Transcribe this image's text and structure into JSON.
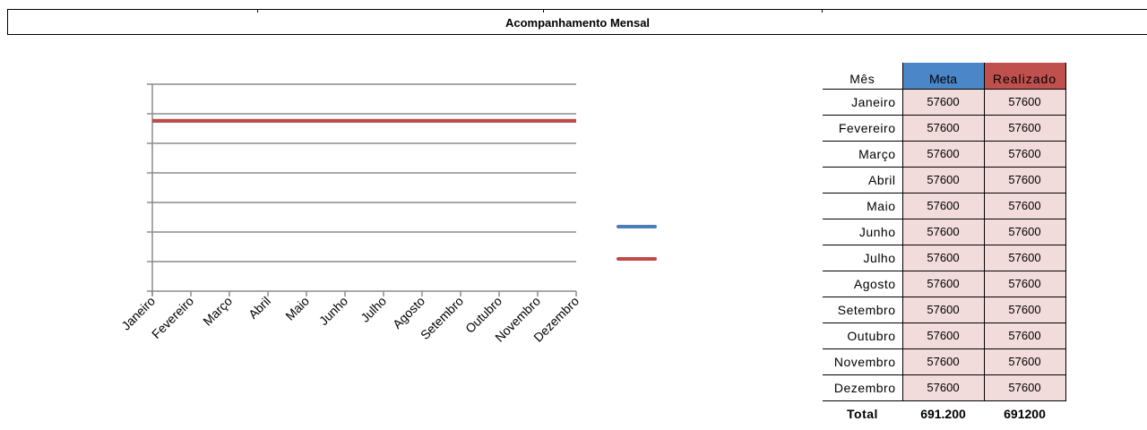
{
  "page": {
    "title": "Acompanhamento Mensal"
  },
  "chart_data": {
    "type": "line",
    "categories": [
      "Janeiro",
      "Fevereiro",
      "Março",
      "Abril",
      "Maio",
      "Junho",
      "Julho",
      "Agosto",
      "Setembro",
      "Outubro",
      "Novembro",
      "Dezembro"
    ],
    "series": [
      {
        "name": "Meta",
        "values": [
          57600,
          57600,
          57600,
          57600,
          57600,
          57600,
          57600,
          57600,
          57600,
          57600,
          57600,
          57600
        ],
        "color": "#4a7ebb"
      },
      {
        "name": "Realizado",
        "values": [
          57600,
          57600,
          57600,
          57600,
          57600,
          57600,
          57600,
          57600,
          57600,
          57600,
          57600,
          57600
        ],
        "color": "#be4b48"
      }
    ],
    "ylim": [
      0,
      70000
    ],
    "yticks": [
      0,
      10000,
      20000,
      30000,
      40000,
      50000,
      60000,
      70000
    ],
    "grid": true,
    "legend": "right"
  },
  "table": {
    "headers": {
      "month": "Mês",
      "meta": "Meta",
      "real": "Realizado"
    },
    "colors": {
      "meta_header": "#4a86c8",
      "real_header": "#c0504d",
      "cell_fill": "#f2dcdb"
    },
    "rows": [
      {
        "month": "Janeiro",
        "meta": "57600",
        "real": "57600"
      },
      {
        "month": "Fevereiro",
        "meta": "57600",
        "real": "57600"
      },
      {
        "month": "Março",
        "meta": "57600",
        "real": "57600"
      },
      {
        "month": "Abril",
        "meta": "57600",
        "real": "57600"
      },
      {
        "month": "Maio",
        "meta": "57600",
        "real": "57600"
      },
      {
        "month": "Junho",
        "meta": "57600",
        "real": "57600"
      },
      {
        "month": "Julho",
        "meta": "57600",
        "real": "57600"
      },
      {
        "month": "Agosto",
        "meta": "57600",
        "real": "57600"
      },
      {
        "month": "Setembro",
        "meta": "57600",
        "real": "57600"
      },
      {
        "month": "Outubro",
        "meta": "57600",
        "real": "57600"
      },
      {
        "month": "Novembro",
        "meta": "57600",
        "real": "57600"
      },
      {
        "month": "Dezembro",
        "meta": "57600",
        "real": "57600"
      }
    ],
    "total": {
      "label": "Total",
      "meta": "691.200",
      "real": "691200"
    }
  }
}
